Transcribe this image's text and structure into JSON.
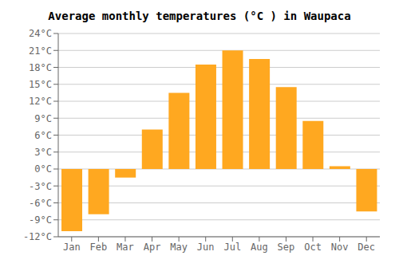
{
  "chart_data": {
    "type": "bar",
    "title": "Average monthly temperatures (°C ) in Waupaca",
    "categories": [
      "Jan",
      "Feb",
      "Mar",
      "Apr",
      "May",
      "Jun",
      "Jul",
      "Aug",
      "Sep",
      "Oct",
      "Nov",
      "Dec"
    ],
    "values": [
      -11,
      -8,
      -1.5,
      7,
      13.5,
      18.5,
      21,
      19.5,
      14.5,
      8.5,
      0.5,
      -7.5
    ],
    "color": "#FFA820",
    "ylim": [
      -12,
      24
    ],
    "yticks": [
      {
        "value": -12,
        "label": "-12°C"
      },
      {
        "value": -9,
        "label": "-9°C"
      },
      {
        "value": -6,
        "label": "-6°C"
      },
      {
        "value": -3,
        "label": "-3°C"
      },
      {
        "value": 0,
        "label": "0°C"
      },
      {
        "value": 3,
        "label": "3°C"
      },
      {
        "value": 6,
        "label": "6°C"
      },
      {
        "value": 9,
        "label": "9°C"
      },
      {
        "value": 12,
        "label": "12°C"
      },
      {
        "value": 15,
        "label": "15°C"
      },
      {
        "value": 18,
        "label": "18°C"
      },
      {
        "value": 21,
        "label": "21°C"
      },
      {
        "value": 24,
        "label": "24°C"
      }
    ],
    "grid": true
  }
}
